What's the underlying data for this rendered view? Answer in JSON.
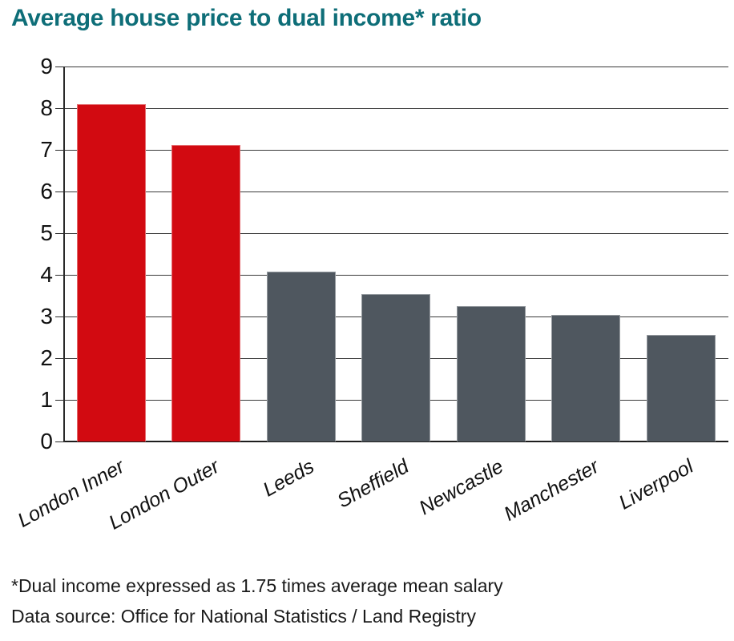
{
  "chart_data": {
    "type": "bar",
    "title": "Average house price to dual income* ratio",
    "categories": [
      "London Inner",
      "London Outer",
      "Leeds",
      "Sheffield",
      "Newcastle",
      "Manchester",
      "Liverpool"
    ],
    "values": [
      8.1,
      7.12,
      4.07,
      3.53,
      3.25,
      3.03,
      2.56
    ],
    "bar_colors": [
      "#d20a11",
      "#d20a11",
      "#4f575f",
      "#4f575f",
      "#4f575f",
      "#4f575f",
      "#4f575f"
    ],
    "highlight_color": "#d20a11",
    "default_color": "#4f575f",
    "title_color": "#0e6e78",
    "xlabel": "",
    "ylabel": "",
    "ylim": [
      0,
      9
    ],
    "yticks": [
      0,
      1,
      2,
      3,
      4,
      5,
      6,
      7,
      8,
      9
    ],
    "grid": true,
    "legend": false
  },
  "footnotes": {
    "line1": "*Dual income expressed as 1.75 times average mean salary",
    "line2": "Data source: Office for National Statistics / Land Registry"
  }
}
